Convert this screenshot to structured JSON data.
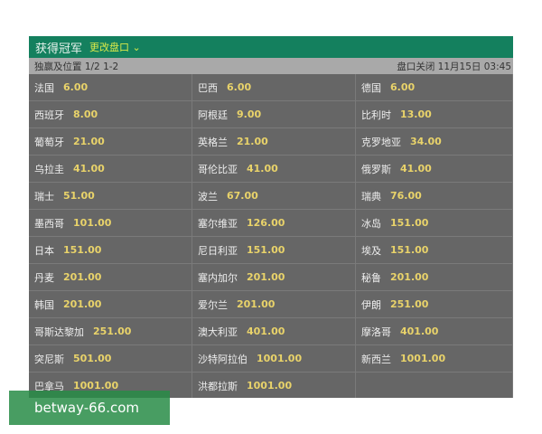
{
  "header": {
    "title": "获得冠军",
    "change_market": "更改盘口 ⌄"
  },
  "subheader": {
    "left": "独赢及位置 1/2 1-2",
    "right": "盘口关闭 11月15日 03:45"
  },
  "selections": [
    {
      "name": "法国",
      "odds": "6.00"
    },
    {
      "name": "巴西",
      "odds": "6.00"
    },
    {
      "name": "德国",
      "odds": "6.00"
    },
    {
      "name": "西班牙",
      "odds": "8.00"
    },
    {
      "name": "阿根廷",
      "odds": "9.00"
    },
    {
      "name": "比利时",
      "odds": "13.00"
    },
    {
      "name": "葡萄牙",
      "odds": "21.00"
    },
    {
      "name": "英格兰",
      "odds": "21.00"
    },
    {
      "name": "克罗地亚",
      "odds": "34.00"
    },
    {
      "name": "乌拉圭",
      "odds": "41.00"
    },
    {
      "name": "哥伦比亚",
      "odds": "41.00"
    },
    {
      "name": "俄罗斯",
      "odds": "41.00"
    },
    {
      "name": "瑞士",
      "odds": "51.00"
    },
    {
      "name": "波兰",
      "odds": "67.00"
    },
    {
      "name": "瑞典",
      "odds": "76.00"
    },
    {
      "name": "墨西哥",
      "odds": "101.00"
    },
    {
      "name": "塞尔维亚",
      "odds": "126.00"
    },
    {
      "name": "冰岛",
      "odds": "151.00"
    },
    {
      "name": "日本",
      "odds": "151.00"
    },
    {
      "name": "尼日利亚",
      "odds": "151.00"
    },
    {
      "name": "埃及",
      "odds": "151.00"
    },
    {
      "name": "丹麦",
      "odds": "201.00"
    },
    {
      "name": "塞内加尔",
      "odds": "201.00"
    },
    {
      "name": "秘鲁",
      "odds": "201.00"
    },
    {
      "name": "韩国",
      "odds": "201.00"
    },
    {
      "name": "爱尔兰",
      "odds": "201.00"
    },
    {
      "name": "伊朗",
      "odds": "251.00"
    },
    {
      "name": "哥斯达黎加",
      "odds": "251.00"
    },
    {
      "name": "澳大利亚",
      "odds": "401.00"
    },
    {
      "name": "摩洛哥",
      "odds": "401.00"
    },
    {
      "name": "突尼斯",
      "odds": "501.00"
    },
    {
      "name": "沙特阿拉伯",
      "odds": "1001.00"
    },
    {
      "name": "新西兰",
      "odds": "1001.00"
    },
    {
      "name": "巴拿马",
      "odds": "1001.00"
    },
    {
      "name": "洪都拉斯",
      "odds": "1001.00"
    },
    {
      "name": "",
      "odds": ""
    }
  ],
  "watermark": "betway-66.com"
}
